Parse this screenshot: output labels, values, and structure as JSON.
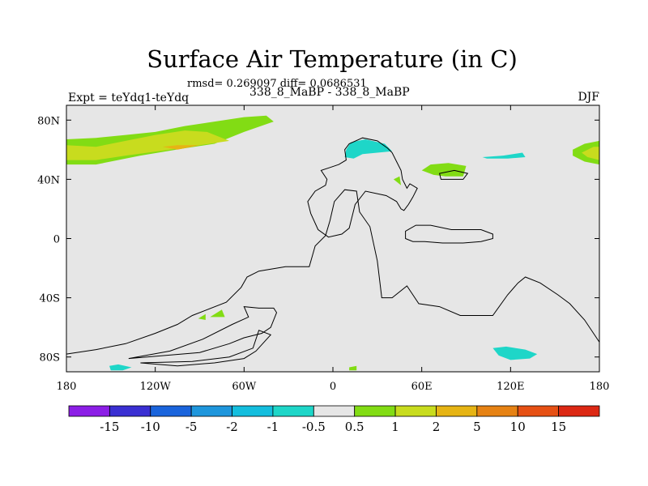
{
  "chart_data": {
    "type": "heatmap",
    "title": "Surface Air Temperature (in C)",
    "stats": "rmsd= 0.269097 diff= 0.0686531",
    "experiment": "Expt = teYdq1-teYdq",
    "periods": "338_8_MaBP - 338_8_MaBP",
    "season": "DJF",
    "xlim": [
      -180,
      180
    ],
    "ylim": [
      -90,
      90
    ],
    "x_ticks": [
      {
        "value": -180,
        "label": "180"
      },
      {
        "value": -120,
        "label": "120W"
      },
      {
        "value": -60,
        "label": "60W"
      },
      {
        "value": 0,
        "label": "0"
      },
      {
        "value": 60,
        "label": "60E"
      },
      {
        "value": 120,
        "label": "120E"
      },
      {
        "value": 180,
        "label": "180"
      }
    ],
    "y_ticks": [
      {
        "value": 80,
        "label": "80N"
      },
      {
        "value": 40,
        "label": "40N"
      },
      {
        "value": 0,
        "label": "0"
      },
      {
        "value": -40,
        "label": "40S"
      },
      {
        "value": -80,
        "label": "80S"
      }
    ],
    "colorbar": {
      "levels": [
        "-15",
        "-10",
        "-5",
        "-2",
        "-1",
        "-0.5",
        "0.5",
        "1",
        "2",
        "5",
        "10",
        "15"
      ],
      "colors": [
        "#8c1ee6",
        "#3a2fd2",
        "#1a64dc",
        "#1e96dc",
        "#14bede",
        "#1ed6c8",
        "#e6e6e6",
        "#82dc14",
        "#c8dc1e",
        "#e6b414",
        "#e68214",
        "#e65014",
        "#dc2814"
      ]
    },
    "anomaly_regions": [
      {
        "name": "north-pacific-warm-1",
        "value_range": "0.5 to 1",
        "color": "#82dc14",
        "points": [
          [
            -180,
            67
          ],
          [
            -160,
            68
          ],
          [
            -140,
            70
          ],
          [
            -120,
            72
          ],
          [
            -100,
            76
          ],
          [
            -80,
            79
          ],
          [
            -60,
            82
          ],
          [
            -45,
            83
          ],
          [
            -40,
            79
          ],
          [
            -60,
            72
          ],
          [
            -80,
            64
          ],
          [
            -100,
            61
          ],
          [
            -130,
            56
          ],
          [
            -160,
            50
          ],
          [
            -180,
            50
          ]
        ]
      },
      {
        "name": "north-pacific-warm-2",
        "value_range": "1 to 2",
        "color": "#c8dc1e",
        "points": [
          [
            -180,
            63
          ],
          [
            -160,
            62
          ],
          [
            -140,
            66
          ],
          [
            -120,
            70
          ],
          [
            -100,
            73
          ],
          [
            -85,
            72
          ],
          [
            -70,
            66
          ],
          [
            -90,
            63
          ],
          [
            -110,
            60
          ],
          [
            -140,
            56
          ],
          [
            -160,
            53
          ],
          [
            -180,
            53
          ]
        ]
      },
      {
        "name": "north-pacific-warm-3",
        "value_range": "2 to 5",
        "color": "#e6b414",
        "points": [
          [
            -115,
            62
          ],
          [
            -105,
            63
          ],
          [
            -90,
            63
          ],
          [
            -105,
            60
          ]
        ]
      },
      {
        "name": "dateline-east-warm-1",
        "value_range": "0.5 to 1",
        "color": "#82dc14",
        "points": [
          [
            162,
            60
          ],
          [
            170,
            64
          ],
          [
            180,
            66
          ],
          [
            180,
            50
          ],
          [
            170,
            52
          ],
          [
            162,
            56
          ]
        ]
      },
      {
        "name": "dateline-east-warm-2",
        "value_range": "1 to 2",
        "color": "#c8dc1e",
        "points": [
          [
            168,
            58
          ],
          [
            176,
            62
          ],
          [
            180,
            62
          ],
          [
            180,
            53
          ],
          [
            172,
            55
          ]
        ]
      },
      {
        "name": "central-asia-warm",
        "value_range": "0.5 to 1",
        "color": "#82dc14",
        "points": [
          [
            60,
            46
          ],
          [
            66,
            50
          ],
          [
            78,
            51
          ],
          [
            90,
            49
          ],
          [
            88,
            42
          ],
          [
            76,
            42
          ],
          [
            68,
            43
          ]
        ]
      },
      {
        "name": "south-atlantic-warm",
        "value_range": "0.5 to 1",
        "color": "#82dc14",
        "points": [
          [
            -83,
            -53
          ],
          [
            -75,
            -48
          ],
          [
            -73,
            -53
          ]
        ]
      },
      {
        "name": "east-asia-warm",
        "value_range": "0.5 to 1",
        "color": "#82dc14",
        "points": [
          [
            41,
            40
          ],
          [
            45,
            42
          ],
          [
            46,
            36
          ]
        ]
      },
      {
        "name": "south-pacific-warm-small",
        "value_range": "0.5 to 1",
        "color": "#82dc14",
        "points": [
          [
            -91,
            -54
          ],
          [
            -86,
            -51
          ],
          [
            -86,
            -55
          ]
        ]
      },
      {
        "name": "south-atlantic-warm-small",
        "value_range": "0.5 to 1",
        "color": "#82dc14",
        "points": [
          [
            11,
            -87
          ],
          [
            16,
            -86
          ],
          [
            16,
            -89
          ],
          [
            11,
            -89
          ]
        ]
      },
      {
        "name": "europe-cool",
        "value_range": "-1 to -0.5",
        "color": "#1ed6c8",
        "points": [
          [
            9,
            60
          ],
          [
            12,
            65
          ],
          [
            22,
            67
          ],
          [
            35,
            64
          ],
          [
            40,
            59
          ],
          [
            30,
            58
          ],
          [
            20,
            57
          ],
          [
            14,
            54
          ],
          [
            8,
            55
          ]
        ]
      },
      {
        "name": "east-asia-cool",
        "value_range": "-1 to -0.5",
        "color": "#1ed6c8",
        "points": [
          [
            101,
            55
          ],
          [
            115,
            56
          ],
          [
            128,
            58
          ],
          [
            130,
            55
          ],
          [
            118,
            54
          ],
          [
            104,
            54
          ]
        ]
      },
      {
        "name": "antarctic-ocean-cool",
        "value_range": "-1 to -0.5",
        "color": "#1ed6c8",
        "points": [
          [
            108,
            -74
          ],
          [
            117,
            -73
          ],
          [
            130,
            -75
          ],
          [
            138,
            -78
          ],
          [
            133,
            -81
          ],
          [
            120,
            -82
          ],
          [
            112,
            -79
          ]
        ]
      },
      {
        "name": "south-pacific-cool",
        "value_range": "-1 to -0.5",
        "color": "#1ed6c8",
        "points": [
          [
            -151,
            -86
          ],
          [
            -145,
            -85
          ],
          [
            -136,
            -87
          ],
          [
            -142,
            -89
          ],
          [
            -150,
            -89
          ]
        ]
      }
    ],
    "continent_outlines": [
      {
        "name": "africa-eurasia-outline",
        "points": [
          [
            9,
            53
          ],
          [
            8,
            60
          ],
          [
            11,
            64
          ],
          [
            20,
            68
          ],
          [
            30,
            66
          ],
          [
            37,
            61
          ],
          [
            40,
            58
          ],
          [
            43,
            52
          ],
          [
            46,
            46
          ],
          [
            47,
            40
          ],
          [
            50,
            34
          ],
          [
            52,
            37
          ],
          [
            57,
            34
          ],
          [
            54,
            28
          ],
          [
            51,
            23
          ],
          [
            48,
            19
          ],
          [
            46,
            20
          ],
          [
            43,
            25
          ],
          [
            36,
            29
          ],
          [
            22,
            32
          ],
          [
            15,
            23
          ],
          [
            11,
            7
          ],
          [
            6,
            3
          ],
          [
            -3,
            1
          ],
          [
            -10,
            6
          ],
          [
            -15,
            17
          ],
          [
            -17,
            25
          ],
          [
            -12,
            32
          ],
          [
            -5,
            36
          ],
          [
            -4,
            40
          ],
          [
            -8,
            46
          ],
          [
            -2,
            48
          ],
          [
            4,
            50
          ]
        ]
      },
      {
        "name": "southern-landmass-outline",
        "points": [
          [
            -180,
            -78
          ],
          [
            -160,
            -75
          ],
          [
            -140,
            -71
          ],
          [
            -120,
            -64
          ],
          [
            -105,
            -58
          ],
          [
            -95,
            -52
          ],
          [
            -72,
            -43
          ],
          [
            -62,
            -33
          ],
          [
            -58,
            -26
          ],
          [
            -50,
            -22
          ],
          [
            -32,
            -19
          ],
          [
            -16,
            -19
          ],
          [
            -12,
            -5
          ],
          [
            -5,
            2
          ],
          [
            -2,
            12
          ],
          [
            1,
            25
          ],
          [
            8,
            33
          ],
          [
            16,
            32
          ],
          [
            18,
            18
          ],
          [
            25,
            8
          ],
          [
            30,
            -15
          ],
          [
            33,
            -40
          ],
          [
            40,
            -40
          ],
          [
            50,
            -32
          ],
          [
            58,
            -44
          ],
          [
            72,
            -46
          ],
          [
            86,
            -52
          ],
          [
            108,
            -52
          ],
          [
            118,
            -38
          ],
          [
            125,
            -30
          ],
          [
            130,
            -26
          ],
          [
            140,
            -30
          ],
          [
            152,
            -38
          ],
          [
            160,
            -44
          ],
          [
            170,
            -55
          ],
          [
            180,
            -70
          ],
          [
            180,
            -90
          ],
          [
            -180,
            -90
          ]
        ]
      },
      {
        "name": "south-america-outline",
        "points": [
          [
            -138,
            -81
          ],
          [
            -90,
            -77
          ],
          [
            -70,
            -71
          ],
          [
            -60,
            -67
          ],
          [
            -48,
            -64
          ],
          [
            -42,
            -60
          ],
          [
            -38,
            -50
          ],
          [
            -40,
            -47
          ],
          [
            -50,
            -47
          ],
          [
            -60,
            -46
          ],
          [
            -57,
            -53
          ],
          [
            -68,
            -58
          ],
          [
            -88,
            -68
          ],
          [
            -110,
            -76
          ],
          [
            -138,
            -81
          ]
        ]
      },
      {
        "name": "antarctic-peninsula-outline",
        "points": [
          [
            -130,
            -84
          ],
          [
            -95,
            -83
          ],
          [
            -70,
            -80
          ],
          [
            -54,
            -74
          ],
          [
            -50,
            -62
          ],
          [
            -42,
            -65
          ],
          [
            -52,
            -76
          ],
          [
            -60,
            -81
          ],
          [
            -80,
            -84
          ],
          [
            -105,
            -86
          ],
          [
            -130,
            -84
          ]
        ]
      },
      {
        "name": "india-outline",
        "points": [
          [
            49,
            5
          ],
          [
            56,
            9
          ],
          [
            66,
            9
          ],
          [
            80,
            6
          ],
          [
            100,
            6
          ],
          [
            108,
            3
          ],
          [
            108,
            0
          ],
          [
            100,
            -2
          ],
          [
            88,
            -3
          ],
          [
            74,
            -3
          ],
          [
            62,
            -2
          ],
          [
            54,
            -2
          ],
          [
            49,
            0
          ]
        ]
      },
      {
        "name": "east-asia-outline",
        "points": [
          [
            72,
            44
          ],
          [
            73,
            40
          ],
          [
            88,
            40
          ],
          [
            91,
            44
          ],
          [
            82,
            46
          ]
        ]
      }
    ]
  }
}
